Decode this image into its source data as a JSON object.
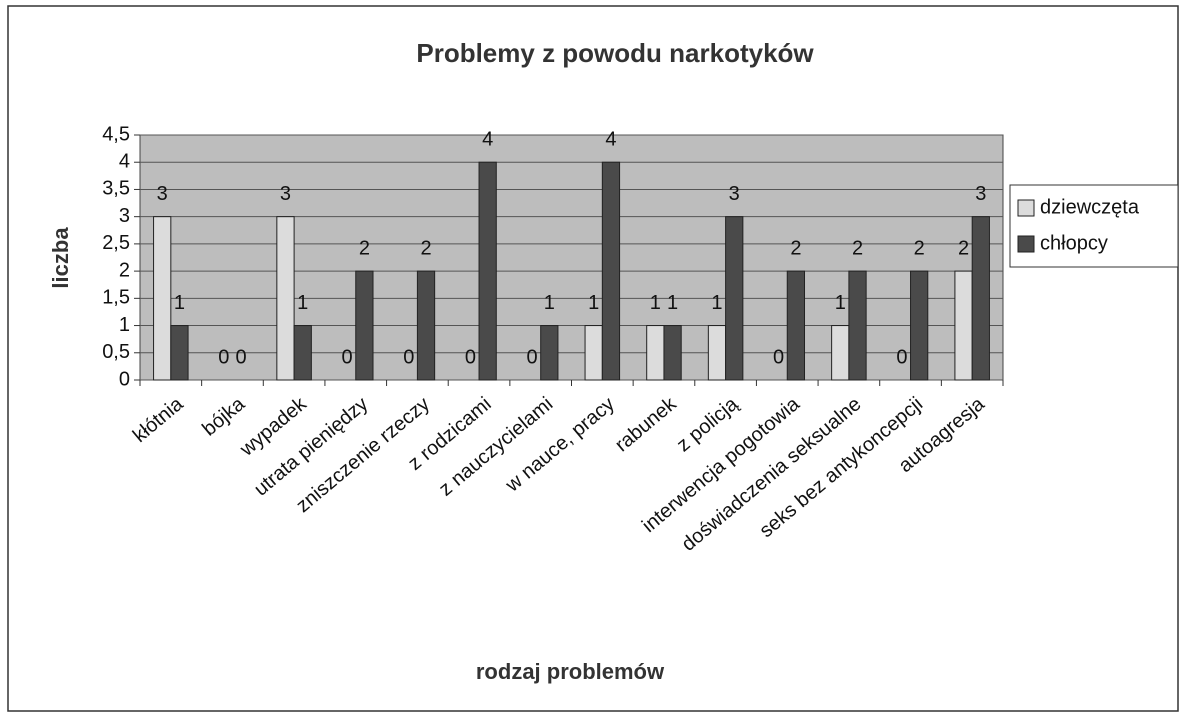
{
  "chart_data": {
    "type": "bar",
    "title": "Problemy z powodu narkotyków",
    "xlabel": "rodzaj problemów",
    "ylabel": "liczba",
    "categories": [
      "kłótnia",
      "bójka",
      "wypadek",
      "utrata pieniędzy",
      "zniszczenie rzeczy",
      "z rodzicami",
      "z nauczycielami",
      "w nauce, pracy",
      "rabunek",
      "z policją",
      "interwencja pogotowia",
      "doświadczenia seksualne",
      "seks bez antykoncepcji",
      "autoagresja"
    ],
    "series": [
      {
        "name": "dziewczęta",
        "color": "#dcdcdc",
        "values": [
          3,
          0,
          3,
          0,
          0,
          0,
          0,
          1,
          1,
          1,
          0,
          1,
          0,
          2
        ]
      },
      {
        "name": "chłopcy",
        "color": "#4a4a4a",
        "values": [
          1,
          0,
          1,
          2,
          2,
          4,
          1,
          4,
          1,
          3,
          2,
          2,
          2,
          3
        ]
      }
    ],
    "ylim": [
      0,
      4.5
    ],
    "yticks": [
      0,
      {
        "value": 0.5,
        "label": "0,5"
      },
      1,
      {
        "value": 1.5,
        "label": "1,5"
      },
      2,
      {
        "value": 2.5,
        "label": "2,5"
      },
      3,
      {
        "value": 3.5,
        "label": "3,5"
      },
      4,
      {
        "value": 4.5,
        "label": "4,5"
      }
    ],
    "grid": true,
    "legend": "right"
  }
}
